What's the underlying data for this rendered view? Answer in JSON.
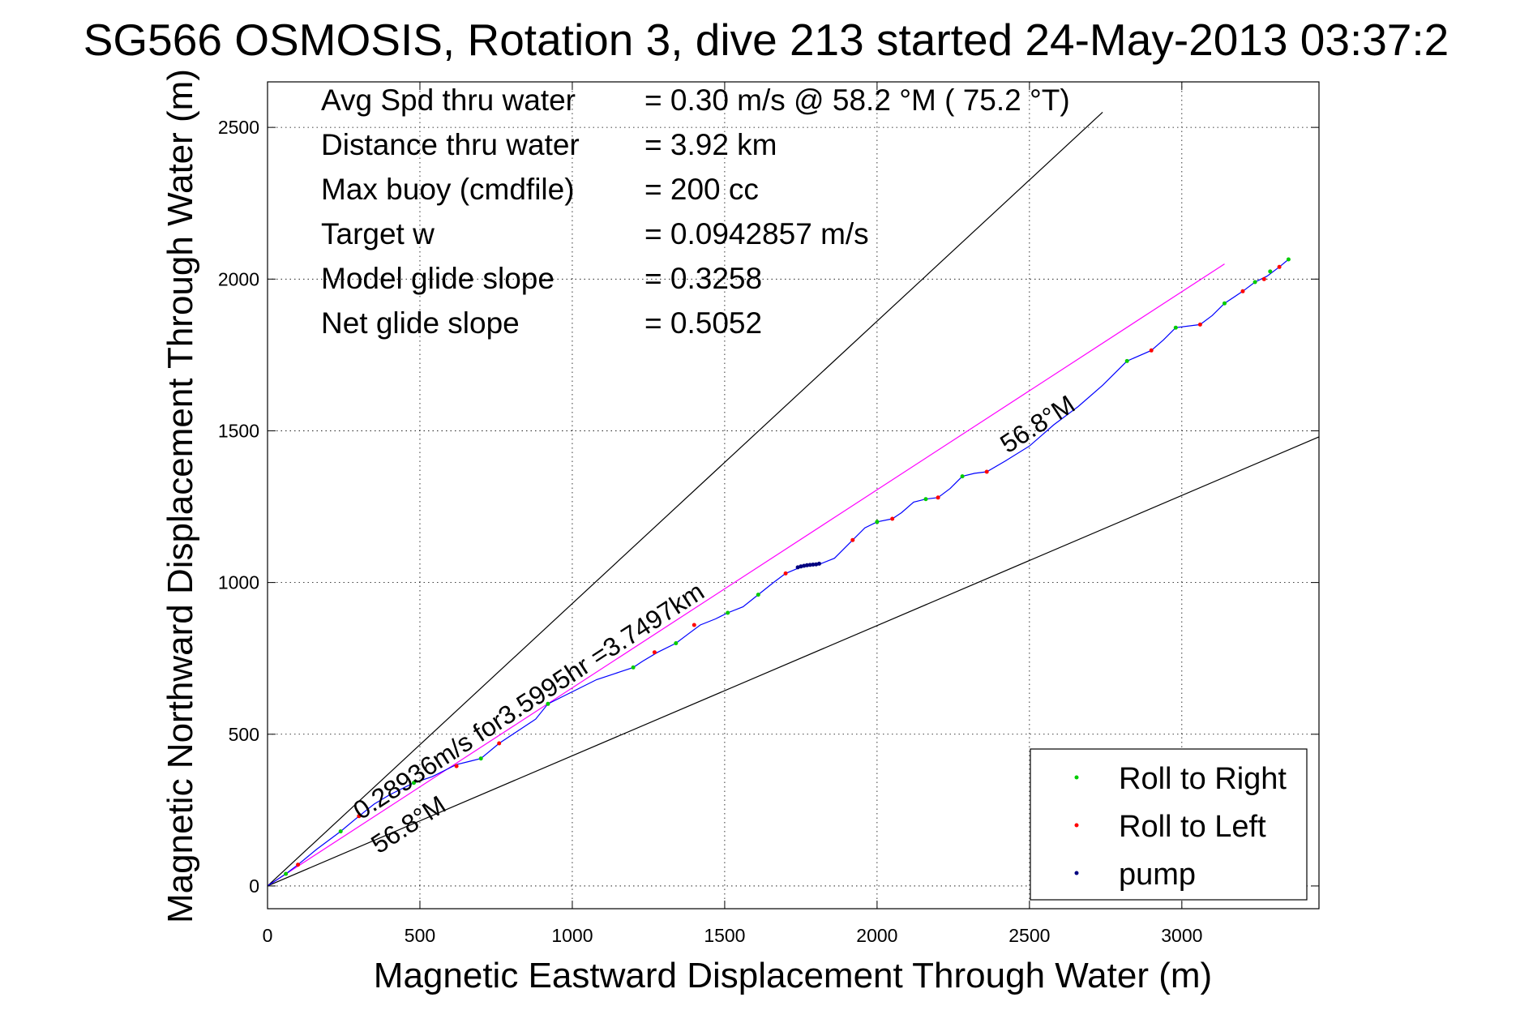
{
  "chart_data": {
    "type": "line",
    "title": "SG566 OSMOSIS, Rotation 3, dive 213 started 24-May-2013 03:37:2",
    "xlabel": "Magnetic Eastward Displacement Through Water (m)",
    "ylabel": "Magnetic Northward Displacement Through Water (m)",
    "xlim": [
      0,
      3450
    ],
    "ylim": [
      -75,
      2650
    ],
    "xticks": [
      0,
      500,
      1000,
      1500,
      2000,
      2500,
      3000
    ],
    "yticks": [
      0,
      500,
      1000,
      1500,
      2000,
      2500
    ],
    "grid": true,
    "legend_position": "bottom-right",
    "stats": [
      {
        "label": "Avg Spd thru water",
        "value": "=  0.30 m/s @  58.2 °M ( 75.2 °T)"
      },
      {
        "label": "Distance thru water",
        "value": "=  3.92 km"
      },
      {
        "label": "Max buoy (cmdfile)",
        "value": "= 200 cc"
      },
      {
        "label": "Target w",
        "value": "= 0.0942857 m/s"
      },
      {
        "label": "Model glide slope",
        "value": "= 0.3258"
      },
      {
        "label": "Net glide slope",
        "value": "= 0.5052"
      }
    ],
    "annotations": {
      "speed_label": "0.28936m/s for3.5995hr =3.7497km",
      "heading_upper": "56.8°M",
      "heading_lower": "56.8°M"
    },
    "reference_lines": [
      {
        "name": "wedge-upper",
        "color": "#000000",
        "x": [
          0,
          2740
        ],
        "y": [
          0,
          2550
        ]
      },
      {
        "name": "wedge-lower",
        "color": "#000000",
        "x": [
          0,
          3450
        ],
        "y": [
          0,
          1480
        ]
      },
      {
        "name": "heading-line",
        "color": "#ff00ff",
        "x": [
          0,
          3140
        ],
        "y": [
          0,
          2050
        ]
      }
    ],
    "series": [
      {
        "name": "track",
        "color": "#0000ff",
        "x": [
          0,
          60,
          100,
          160,
          240,
          300,
          350,
          400,
          440,
          480,
          540,
          600,
          620,
          660,
          700,
          760,
          820,
          880,
          920,
          980,
          1020,
          1080,
          1140,
          1200,
          1230,
          1280,
          1340,
          1380,
          1420,
          1470,
          1510,
          1560,
          1610,
          1660,
          1700,
          1760,
          1810,
          1860,
          1920,
          1960,
          2000,
          2050,
          2080,
          2120,
          2160,
          2200,
          2240,
          2280,
          2320,
          2360,
          2420,
          2500,
          2580,
          2660,
          2740,
          2820,
          2900,
          2940,
          2980,
          3060,
          3100,
          3140,
          3200,
          3240,
          3280,
          3320,
          3350
        ],
        "y": [
          0,
          40,
          70,
          120,
          180,
          230,
          270,
          300,
          320,
          340,
          360,
          390,
          400,
          410,
          420,
          470,
          510,
          550,
          600,
          630,
          650,
          680,
          700,
          720,
          740,
          770,
          800,
          830,
          860,
          880,
          900,
          920,
          960,
          1000,
          1030,
          1055,
          1060,
          1080,
          1140,
          1180,
          1200,
          1210,
          1230,
          1265,
          1275,
          1280,
          1310,
          1350,
          1360,
          1365,
          1400,
          1450,
          1520,
          1580,
          1650,
          1730,
          1765,
          1800,
          1840,
          1850,
          1880,
          1920,
          1960,
          1990,
          2010,
          2040,
          2065
        ]
      },
      {
        "name": "Roll to Right",
        "color": "#00cc00",
        "x": [
          60,
          240,
          480,
          700,
          920,
          1200,
          1340,
          1510,
          1610,
          2000,
          2160,
          2280,
          2820,
          2980,
          3140,
          3240,
          3290,
          3350
        ],
        "y": [
          40,
          180,
          340,
          420,
          600,
          720,
          800,
          900,
          960,
          1200,
          1275,
          1350,
          1730,
          1840,
          1920,
          1990,
          2025,
          2065
        ]
      },
      {
        "name": "Roll to Left",
        "color": "#ff0000",
        "x": [
          100,
          300,
          620,
          760,
          1270,
          1400,
          1700,
          1920,
          2050,
          2200,
          2360,
          2900,
          3060,
          3200,
          3270,
          3320
        ],
        "y": [
          70,
          230,
          395,
          470,
          770,
          860,
          1030,
          1140,
          1210,
          1280,
          1365,
          1765,
          1850,
          1960,
          2000,
          2040
        ]
      },
      {
        "name": "pump",
        "color": "#000080",
        "x": [
          1740,
          1750,
          1760,
          1770,
          1780,
          1790,
          1800,
          1810
        ],
        "y": [
          1050,
          1053,
          1055,
          1057,
          1058,
          1059,
          1060,
          1062
        ]
      }
    ],
    "legend": [
      {
        "name": "Roll to Right",
        "color": "#00cc00"
      },
      {
        "name": "Roll to Left",
        "color": "#ff0000"
      },
      {
        "name": "pump",
        "color": "#000080"
      }
    ]
  }
}
